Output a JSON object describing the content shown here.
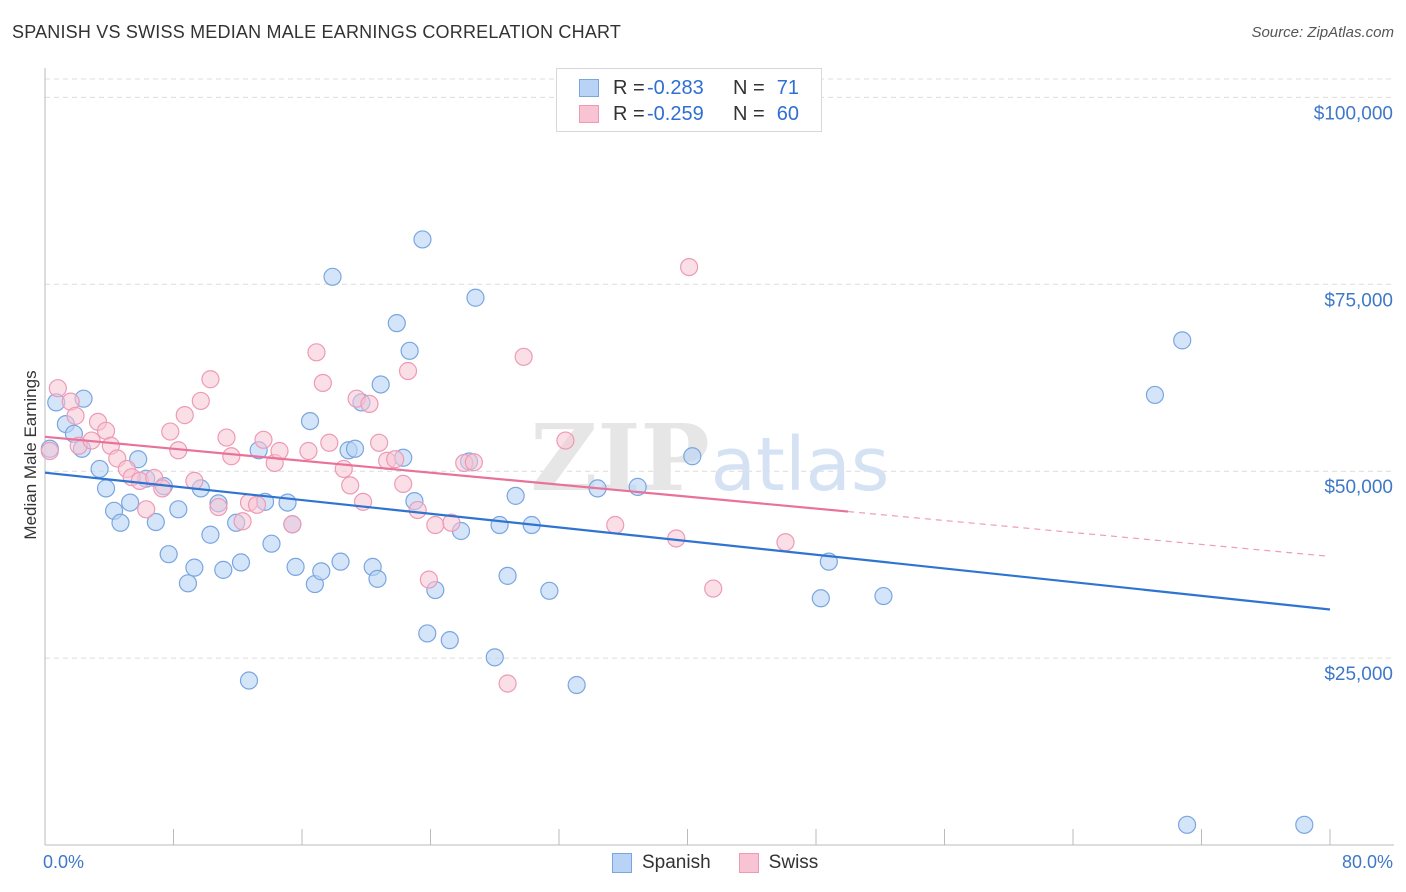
{
  "title": "SPANISH VS SWISS MEDIAN MALE EARNINGS CORRELATION CHART",
  "source": "Source: ZipAtlas.com",
  "watermark": {
    "zip": "ZIP",
    "atlas": "atlas"
  },
  "colors": {
    "spanish_fill": "#b8d3f5",
    "spanish_stroke": "#7aa6e0",
    "spanish_line": "#2f74d0",
    "swiss_fill": "#f8c4d4",
    "swiss_stroke": "#ee9ab6",
    "swiss_line": "#e8729a",
    "axis_text": "#3f78c8"
  },
  "legend_top": [
    {
      "label": "R = ",
      "r": "-0.283",
      "n_label": "N = ",
      "n": "71"
    },
    {
      "label": "R = ",
      "r": "-0.259",
      "n_label": "N = ",
      "n": "60"
    }
  ],
  "chart_data": {
    "type": "scatter",
    "title": "SPANISH VS SWISS MEDIAN MALE EARNINGS CORRELATION CHART",
    "xlabel": "",
    "ylabel": "Median Male Earnings",
    "xlim": [
      0,
      80
    ],
    "ylim": [
      0,
      105000
    ],
    "x_tick_labels": [
      "0.0%",
      "80.0%"
    ],
    "y_ticks": [
      25000,
      50000,
      75000,
      100000
    ],
    "y_tick_labels": [
      "$25,000",
      "$50,000",
      "$75,000",
      "$100,000"
    ],
    "grid": true,
    "legend": [
      "Spanish",
      "Swiss"
    ],
    "series": [
      {
        "name": "Spanish",
        "r": -0.283,
        "n": 71,
        "trend": {
          "x": [
            0,
            80
          ],
          "y": [
            49800,
            31500
          ]
        },
        "points": [
          [
            0.3,
            53000
          ],
          [
            0.7,
            59200
          ],
          [
            1.3,
            56300
          ],
          [
            1.8,
            55000
          ],
          [
            2.3,
            53000
          ],
          [
            2.4,
            59700
          ],
          [
            3.4,
            50300
          ],
          [
            3.8,
            47700
          ],
          [
            4.3,
            44700
          ],
          [
            4.7,
            43100
          ],
          [
            5.3,
            45800
          ],
          [
            5.8,
            51600
          ],
          [
            6.3,
            49000
          ],
          [
            6.9,
            43200
          ],
          [
            7.4,
            48000
          ],
          [
            7.7,
            38900
          ],
          [
            8.3,
            44900
          ],
          [
            8.9,
            35000
          ],
          [
            9.3,
            37100
          ],
          [
            9.7,
            47700
          ],
          [
            10.3,
            41500
          ],
          [
            10.8,
            45700
          ],
          [
            11.1,
            36800
          ],
          [
            11.9,
            43100
          ],
          [
            12.2,
            37800
          ],
          [
            12.7,
            22000
          ],
          [
            13.3,
            52800
          ],
          [
            13.7,
            45900
          ],
          [
            14.1,
            40300
          ],
          [
            15.1,
            45800
          ],
          [
            15.4,
            42900
          ],
          [
            15.6,
            37200
          ],
          [
            16.5,
            56700
          ],
          [
            16.8,
            34900
          ],
          [
            17.2,
            36600
          ],
          [
            17.9,
            76000
          ],
          [
            18.4,
            37900
          ],
          [
            18.9,
            52800
          ],
          [
            19.3,
            53000
          ],
          [
            19.7,
            59200
          ],
          [
            20.4,
            37200
          ],
          [
            20.7,
            35600
          ],
          [
            20.9,
            61600
          ],
          [
            21.9,
            69800
          ],
          [
            22.3,
            51800
          ],
          [
            22.7,
            66100
          ],
          [
            23.0,
            46000
          ],
          [
            23.5,
            81000
          ],
          [
            23.8,
            28300
          ],
          [
            24.3,
            34100
          ],
          [
            25.2,
            27400
          ],
          [
            25.9,
            42000
          ],
          [
            26.4,
            51300
          ],
          [
            26.8,
            73200
          ],
          [
            28.0,
            25100
          ],
          [
            28.3,
            42800
          ],
          [
            28.8,
            36000
          ],
          [
            29.3,
            46700
          ],
          [
            30.3,
            42800
          ],
          [
            31.4,
            34000
          ],
          [
            33.1,
            21400
          ],
          [
            34.4,
            47700
          ],
          [
            36.9,
            47900
          ],
          [
            40.3,
            52000
          ],
          [
            48.3,
            33000
          ],
          [
            48.8,
            37900
          ],
          [
            52.2,
            33300
          ],
          [
            69.1,
            60200
          ],
          [
            70.8,
            67500
          ],
          [
            71.1,
            2700
          ],
          [
            78.4,
            2700
          ]
        ]
      },
      {
        "name": "Swiss",
        "r": -0.259,
        "n": 60,
        "trend": {
          "x": [
            0,
            50
          ],
          "y": [
            54600,
            44600
          ]
        },
        "trend_dashed": {
          "x": [
            50,
            80
          ],
          "y": [
            44600,
            38600
          ]
        },
        "points": [
          [
            0.3,
            52700
          ],
          [
            0.8,
            61100
          ],
          [
            1.6,
            59300
          ],
          [
            1.9,
            57400
          ],
          [
            2.1,
            53400
          ],
          [
            2.9,
            54100
          ],
          [
            3.3,
            56600
          ],
          [
            3.8,
            55400
          ],
          [
            4.1,
            53400
          ],
          [
            4.5,
            51700
          ],
          [
            5.1,
            50300
          ],
          [
            5.4,
            49200
          ],
          [
            5.9,
            48700
          ],
          [
            6.3,
            44900
          ],
          [
            6.8,
            49100
          ],
          [
            7.3,
            47700
          ],
          [
            7.8,
            55300
          ],
          [
            8.3,
            52800
          ],
          [
            8.7,
            57500
          ],
          [
            9.3,
            48700
          ],
          [
            9.7,
            59400
          ],
          [
            10.3,
            62300
          ],
          [
            10.8,
            45200
          ],
          [
            11.3,
            54500
          ],
          [
            11.6,
            52000
          ],
          [
            12.3,
            43300
          ],
          [
            12.7,
            45800
          ],
          [
            13.2,
            45500
          ],
          [
            13.6,
            54200
          ],
          [
            14.3,
            51100
          ],
          [
            14.6,
            52700
          ],
          [
            15.4,
            42900
          ],
          [
            16.4,
            52700
          ],
          [
            16.9,
            65900
          ],
          [
            17.3,
            61800
          ],
          [
            17.7,
            53800
          ],
          [
            18.6,
            50300
          ],
          [
            19.0,
            48100
          ],
          [
            19.4,
            59700
          ],
          [
            19.8,
            45900
          ],
          [
            20.2,
            59000
          ],
          [
            20.8,
            53800
          ],
          [
            21.3,
            51400
          ],
          [
            21.8,
            51600
          ],
          [
            22.3,
            48300
          ],
          [
            22.6,
            63400
          ],
          [
            23.2,
            44800
          ],
          [
            23.9,
            35500
          ],
          [
            24.3,
            42800
          ],
          [
            25.3,
            43100
          ],
          [
            26.1,
            51100
          ],
          [
            26.7,
            51200
          ],
          [
            28.8,
            21600
          ],
          [
            29.8,
            65300
          ],
          [
            32.4,
            54100
          ],
          [
            35.5,
            42800
          ],
          [
            39.3,
            41000
          ],
          [
            40.1,
            77300
          ],
          [
            41.6,
            34300
          ],
          [
            46.1,
            40500
          ]
        ]
      }
    ]
  }
}
